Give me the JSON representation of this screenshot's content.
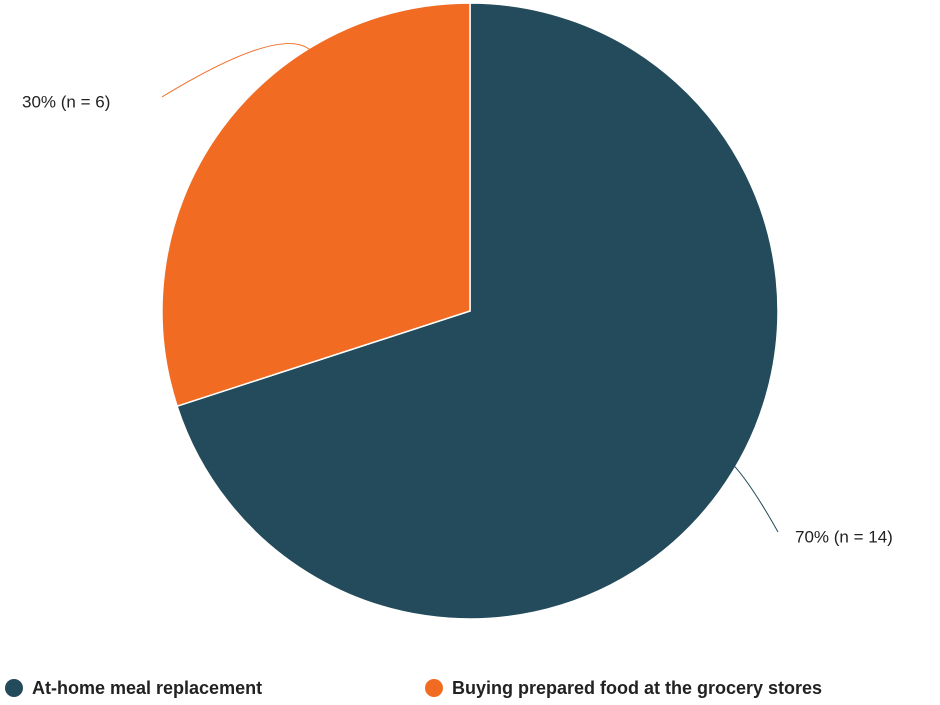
{
  "chart_data": {
    "type": "pie",
    "title": "",
    "series": [
      {
        "name": "At-home meal replacement",
        "percent": 70,
        "n": 14,
        "label": "70% (n = 14)",
        "color": "#234b5b"
      },
      {
        "name": "Buying prepared food at the grocery stores",
        "percent": 30,
        "n": 6,
        "label": "30% (n = 6)",
        "color": "#f26b23"
      }
    ],
    "start_angle": "12 o'clock",
    "direction": "clockwise",
    "legend_position": "bottom"
  }
}
